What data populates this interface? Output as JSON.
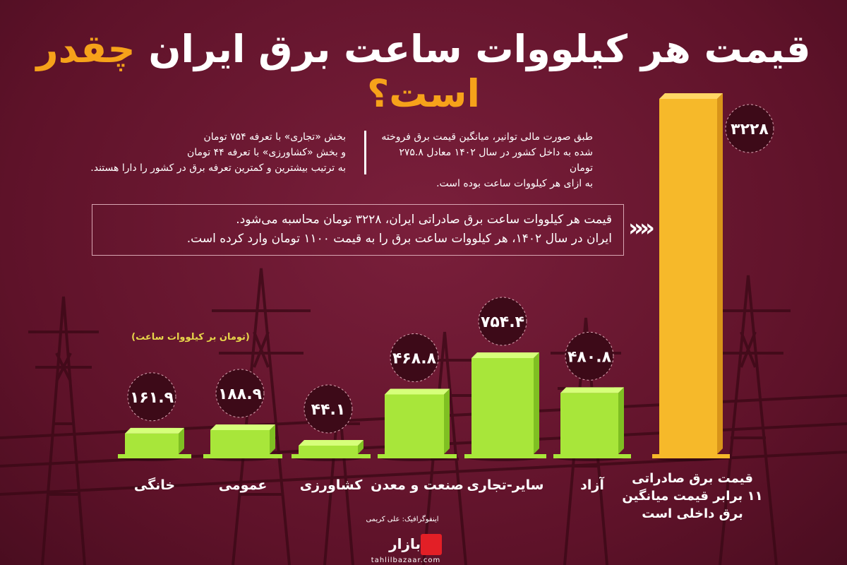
{
  "header": {
    "title_white": "قیمت هر کیلووات ساعت برق ایران",
    "title_orange": "چقدر است؟"
  },
  "notes": {
    "right_lines": [
      "طبق صورت مالی توانیر، میانگین قیمت برق فروخته",
      "شده به داخل کشور در سال ۱۴۰۲ معادل ۲۷۵.۸ تومان",
      "به ازای هر کیلووات ساعت بوده است."
    ],
    "left_lines": [
      "بخش «تجاری» با تعرفه ۷۵۴ تومان",
      "و بخش «کشاورزی» با تعرفه ۴۴ تومان",
      "به ترتیب بیشترین و کمترین تعرفه برق در کشور را دارا هستند."
    ],
    "export_lines": [
      "قیمت هر کیلووات ساعت برق صادراتی ایران، ۳۲۲۸ تومان محاسبه می‌شود.",
      "ایران در سال ۱۴۰۲، هر کیلووات ساعت برق را به قیمت ۱۱۰۰ تومان وارد کرده است."
    ],
    "arrows": "»"
  },
  "unit_label": "(تومان بر کیلووات ساعت)",
  "credit": "اینفوگرافیک: علی کریمی",
  "logo": {
    "name": "بازار",
    "url": "tahlilbazaar.com"
  },
  "colors": {
    "background": "#6b1730",
    "bar_green": "#a8e63a",
    "bar_gold": "#f6b92a",
    "accent_orange": "#f6a21a",
    "unit_yellow": "#e7d64a",
    "badge_fill": "#3d0a18"
  },
  "chart_data": {
    "type": "bar",
    "categories": [
      "خانگی",
      "عمومی",
      "کشاورزی",
      "صنعت و معدن",
      "سایر-تجاری",
      "آزاد",
      "قیمت برق صادراتی"
    ],
    "values": [
      161.9,
      188.9,
      44.1,
      468.8,
      754.4,
      480.8,
      3228
    ],
    "value_labels": [
      "۱۶۱.۹",
      "۱۸۸.۹",
      "۴۴.۱",
      "۴۶۸.۸",
      "۷۵۴.۴",
      "۴۸۰.۸",
      "۳۲۲۸"
    ],
    "highlight_label_lines": [
      "قیمت برق صادراتی",
      "۱۱ برابر قیمت میانگین",
      "برق داخلی است"
    ],
    "ylabel": "(تومان بر کیلووات ساعت)"
  }
}
